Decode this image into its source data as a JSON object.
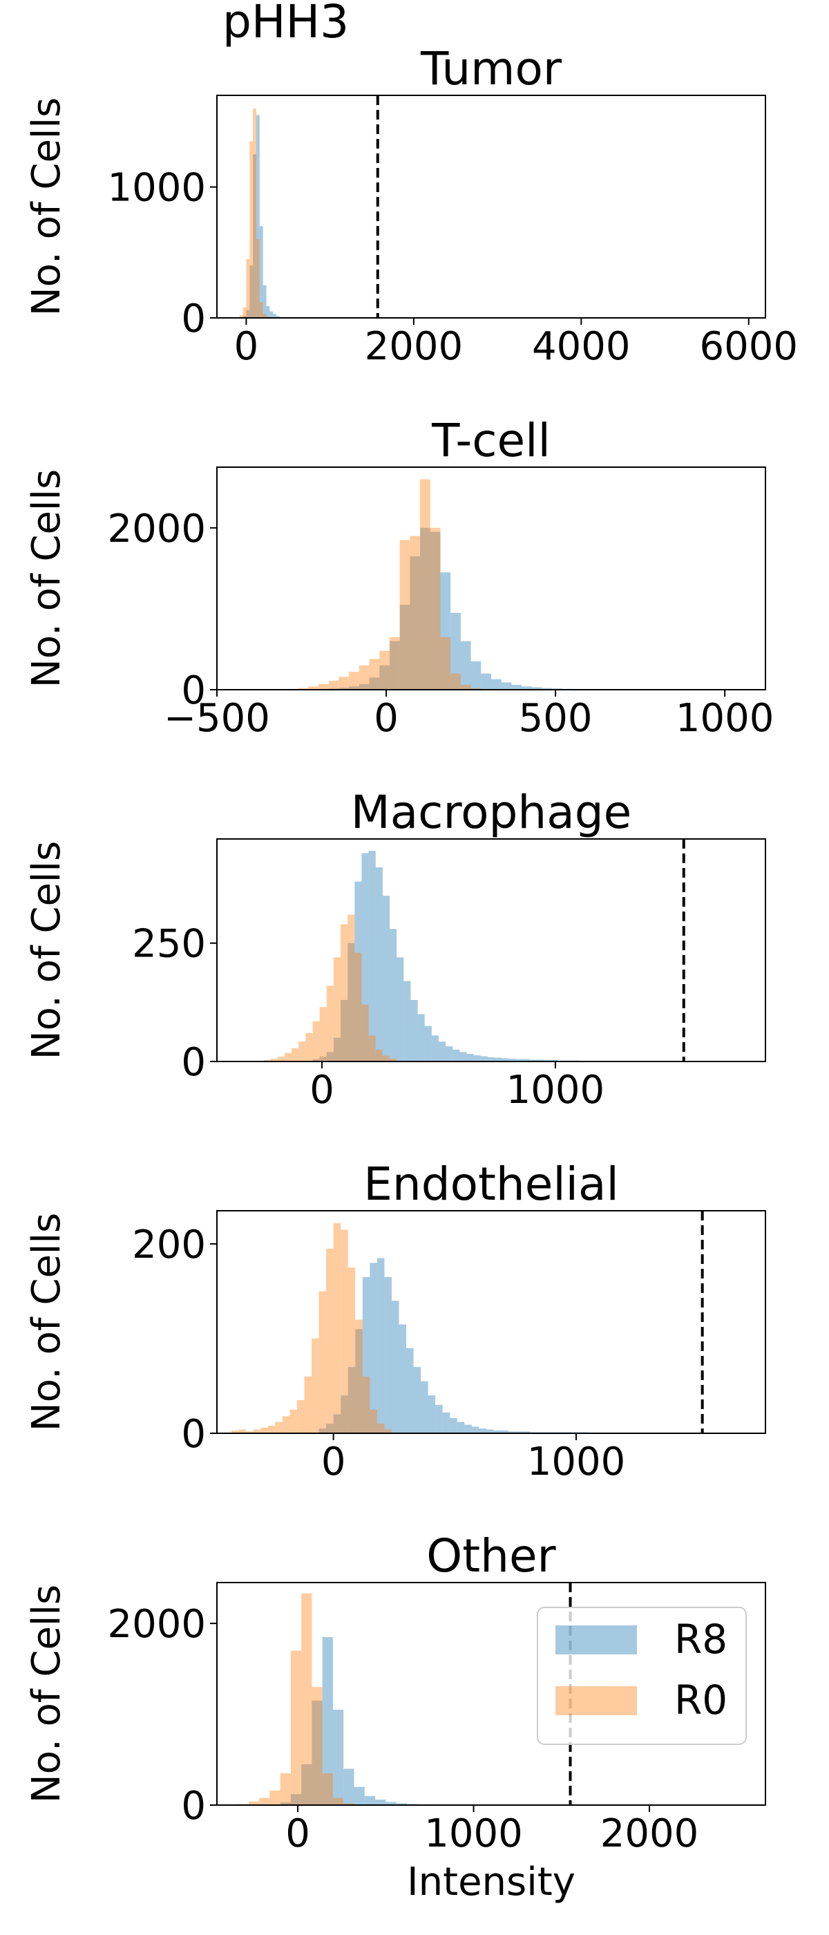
{
  "suptitle": "pHH3",
  "colors": {
    "R8": "#1f77b4",
    "R0": "#ff7f0e",
    "bar_alpha": 0.4
  },
  "legend": {
    "location": "upper right",
    "panel_index": 4,
    "entries": [
      "R8",
      "R0"
    ]
  },
  "chart_data": [
    {
      "type": "bar",
      "title": "Tumor",
      "ylabel": "No. of Cells",
      "xlabel": "",
      "xlim": [
        -350,
        6200
      ],
      "ylim": [
        0,
        1700
      ],
      "xticks": [
        0,
        2000,
        4000,
        6000
      ],
      "xtick_labels": [
        "0",
        "2000",
        "4000",
        "6000"
      ],
      "yticks": [
        0,
        1000
      ],
      "ytick_labels": [
        "0",
        "1000"
      ],
      "threshold": 1570,
      "series": [
        {
          "name": "R8",
          "bins": [
            [
              -40,
              15
            ],
            [
              0,
              60
            ],
            [
              40,
              400
            ],
            [
              80,
              1250
            ],
            [
              120,
              1550
            ],
            [
              160,
              700
            ],
            [
              200,
              250
            ],
            [
              240,
              90
            ],
            [
              280,
              50
            ],
            [
              320,
              30
            ],
            [
              360,
              15
            ]
          ]
        },
        {
          "name": "R0",
          "bins": [
            [
              -80,
              20
            ],
            [
              -40,
              80
            ],
            [
              0,
              450
            ],
            [
              40,
              1350
            ],
            [
              80,
              1600
            ],
            [
              120,
              600
            ],
            [
              160,
              120
            ],
            [
              200,
              30
            ],
            [
              240,
              10
            ]
          ]
        }
      ]
    },
    {
      "type": "bar",
      "title": "T-cell",
      "ylabel": "No. of Cells",
      "xlabel": "",
      "xlim": [
        -500,
        1120
      ],
      "ylim": [
        0,
        2750
      ],
      "xticks": [
        -500,
        0,
        500,
        1000
      ],
      "xtick_labels": [
        "−500",
        "0",
        "500",
        "1000"
      ],
      "yticks": [
        0,
        2000
      ],
      "ytick_labels": [
        "0",
        "2000"
      ],
      "threshold": null,
      "series": [
        {
          "name": "R8",
          "bins": [
            [
              -200,
              10
            ],
            [
              -170,
              15
            ],
            [
              -140,
              25
            ],
            [
              -110,
              40
            ],
            [
              -80,
              70
            ],
            [
              -50,
              150
            ],
            [
              -20,
              300
            ],
            [
              10,
              600
            ],
            [
              40,
              1050
            ],
            [
              70,
              1650
            ],
            [
              100,
              2000
            ],
            [
              130,
              1950
            ],
            [
              160,
              1450
            ],
            [
              190,
              950
            ],
            [
              220,
              600
            ],
            [
              250,
              350
            ],
            [
              280,
              200
            ],
            [
              310,
              130
            ],
            [
              340,
              90
            ],
            [
              370,
              60
            ],
            [
              400,
              40
            ],
            [
              430,
              30
            ],
            [
              460,
              20
            ],
            [
              490,
              15
            ],
            [
              520,
              10
            ],
            [
              550,
              8
            ],
            [
              580,
              5
            ],
            [
              610,
              3
            ]
          ]
        },
        {
          "name": "R0",
          "bins": [
            [
              -320,
              5
            ],
            [
              -290,
              10
            ],
            [
              -260,
              20
            ],
            [
              -230,
              40
            ],
            [
              -200,
              70
            ],
            [
              -170,
              110
            ],
            [
              -140,
              160
            ],
            [
              -110,
              220
            ],
            [
              -80,
              300
            ],
            [
              -50,
              380
            ],
            [
              -20,
              480
            ],
            [
              10,
              650
            ],
            [
              40,
              1850
            ],
            [
              70,
              1900
            ],
            [
              100,
              2600
            ],
            [
              130,
              2000
            ],
            [
              160,
              650
            ],
            [
              190,
              200
            ],
            [
              220,
              60
            ],
            [
              250,
              20
            ],
            [
              280,
              8
            ]
          ]
        }
      ]
    },
    {
      "type": "bar",
      "title": "Macrophage",
      "ylabel": "No. of Cells",
      "xlabel": "",
      "xlim": [
        -450,
        1900
      ],
      "ylim": [
        0,
        470
      ],
      "xticks": [
        0,
        1000
      ],
      "xtick_labels": [
        "0",
        "1000"
      ],
      "yticks": [
        0,
        250
      ],
      "ytick_labels": [
        "0",
        "250"
      ],
      "threshold": 1550,
      "series": [
        {
          "name": "R8",
          "bins": [
            [
              -40,
              5
            ],
            [
              -10,
              10
            ],
            [
              20,
              20
            ],
            [
              50,
              50
            ],
            [
              80,
              130
            ],
            [
              110,
              250
            ],
            [
              140,
              380
            ],
            [
              170,
              440
            ],
            [
              200,
              445
            ],
            [
              230,
              410
            ],
            [
              260,
              350
            ],
            [
              290,
              280
            ],
            [
              320,
              220
            ],
            [
              350,
              170
            ],
            [
              380,
              130
            ],
            [
              410,
              100
            ],
            [
              440,
              75
            ],
            [
              470,
              55
            ],
            [
              500,
              42
            ],
            [
              530,
              32
            ],
            [
              560,
              25
            ],
            [
              590,
              20
            ],
            [
              620,
              16
            ],
            [
              650,
              13
            ],
            [
              680,
              11
            ],
            [
              710,
              9
            ],
            [
              740,
              8
            ],
            [
              770,
              7
            ],
            [
              800,
              6
            ],
            [
              830,
              5
            ],
            [
              860,
              5
            ],
            [
              890,
              4
            ],
            [
              920,
              4
            ],
            [
              950,
              3
            ],
            [
              980,
              3
            ],
            [
              1010,
              2
            ],
            [
              1040,
              2
            ],
            [
              1070,
              2
            ]
          ]
        },
        {
          "name": "R0",
          "bins": [
            [
              -250,
              3
            ],
            [
              -220,
              6
            ],
            [
              -190,
              10
            ],
            [
              -160,
              18
            ],
            [
              -130,
              28
            ],
            [
              -100,
              42
            ],
            [
              -70,
              60
            ],
            [
              -40,
              85
            ],
            [
              -10,
              115
            ],
            [
              20,
              160
            ],
            [
              50,
              220
            ],
            [
              80,
              290
            ],
            [
              110,
              310
            ],
            [
              140,
              230
            ],
            [
              170,
              120
            ],
            [
              200,
              55
            ],
            [
              230,
              25
            ],
            [
              260,
              12
            ],
            [
              290,
              6
            ]
          ]
        }
      ]
    },
    {
      "type": "bar",
      "title": "Endothelial",
      "ylabel": "No. of Cells",
      "xlabel": "",
      "xlim": [
        -480,
        1780
      ],
      "ylim": [
        0,
        235
      ],
      "xticks": [
        0,
        1000
      ],
      "xtick_labels": [
        "0",
        "1000"
      ],
      "yticks": [
        0,
        200
      ],
      "ytick_labels": [
        "0",
        "200"
      ],
      "threshold": 1520,
      "series": [
        {
          "name": "R8",
          "bins": [
            [
              -60,
              5
            ],
            [
              -30,
              10
            ],
            [
              0,
              20
            ],
            [
              30,
              40
            ],
            [
              60,
              70
            ],
            [
              90,
              110
            ],
            [
              120,
              165
            ],
            [
              150,
              180
            ],
            [
              180,
              185
            ],
            [
              210,
              165
            ],
            [
              240,
              140
            ],
            [
              270,
              115
            ],
            [
              300,
              90
            ],
            [
              330,
              70
            ],
            [
              360,
              55
            ],
            [
              390,
              40
            ],
            [
              420,
              30
            ],
            [
              450,
              22
            ],
            [
              480,
              16
            ],
            [
              510,
              12
            ],
            [
              540,
              9
            ],
            [
              570,
              7
            ],
            [
              600,
              5
            ],
            [
              630,
              4
            ],
            [
              660,
              3
            ],
            [
              690,
              3
            ],
            [
              720,
              2
            ],
            [
              750,
              2
            ],
            [
              780,
              2
            ],
            [
              810,
              1
            ],
            [
              840,
              1
            ],
            [
              870,
              1
            ],
            [
              900,
              1
            ],
            [
              930,
              1
            ],
            [
              960,
              1
            ],
            [
              990,
              1
            ],
            [
              1020,
              1
            ]
          ]
        },
        {
          "name": "R0",
          "bins": [
            [
              -420,
              3
            ],
            [
              -390,
              4
            ],
            [
              -360,
              2
            ],
            [
              -330,
              4
            ],
            [
              -300,
              6
            ],
            [
              -270,
              8
            ],
            [
              -240,
              12
            ],
            [
              -210,
              18
            ],
            [
              -180,
              25
            ],
            [
              -150,
              35
            ],
            [
              -120,
              60
            ],
            [
              -90,
              100
            ],
            [
              -60,
              150
            ],
            [
              -30,
              195
            ],
            [
              0,
              222
            ],
            [
              30,
              215
            ],
            [
              60,
              175
            ],
            [
              90,
              120
            ],
            [
              120,
              60
            ],
            [
              150,
              25
            ],
            [
              180,
              10
            ],
            [
              210,
              4
            ]
          ]
        }
      ]
    },
    {
      "type": "bar",
      "title": "Other",
      "ylabel": "No. of Cells",
      "xlabel": "Intensity",
      "xlim": [
        -460,
        2660
      ],
      "ylim": [
        0,
        2450
      ],
      "xticks": [
        0,
        1000,
        2000
      ],
      "xtick_labels": [
        "0",
        "1000",
        "2000"
      ],
      "yticks": [
        0,
        2000
      ],
      "ytick_labels": [
        "0",
        "2000"
      ],
      "threshold": 1550,
      "series": [
        {
          "name": "R8",
          "bins": [
            [
              -100,
              30
            ],
            [
              -40,
              120
            ],
            [
              20,
              450
            ],
            [
              80,
              1150
            ],
            [
              140,
              1850
            ],
            [
              200,
              1050
            ],
            [
              260,
              400
            ],
            [
              320,
              200
            ],
            [
              380,
              100
            ],
            [
              440,
              60
            ],
            [
              500,
              35
            ],
            [
              560,
              20
            ],
            [
              620,
              12
            ],
            [
              680,
              8
            ],
            [
              740,
              5
            ],
            [
              800,
              3
            ]
          ]
        },
        {
          "name": "R0",
          "bins": [
            [
              -340,
              10
            ],
            [
              -280,
              40
            ],
            [
              -220,
              80
            ],
            [
              -160,
              160
            ],
            [
              -100,
              350
            ],
            [
              -40,
              1700
            ],
            [
              20,
              2330
            ],
            [
              80,
              1300
            ],
            [
              140,
              350
            ],
            [
              200,
              80
            ],
            [
              260,
              20
            ]
          ]
        }
      ]
    }
  ]
}
